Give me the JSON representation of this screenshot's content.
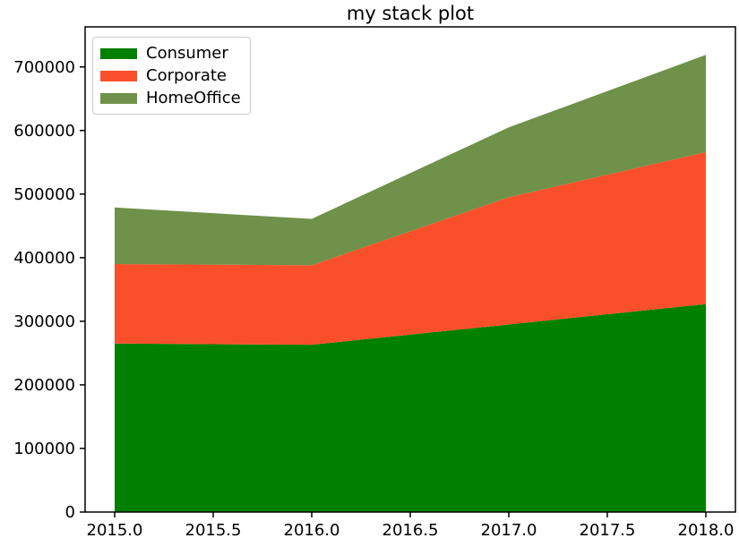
{
  "chart_data": {
    "type": "area",
    "stacked": true,
    "title": "my stack plot",
    "x": [
      2015,
      2016,
      2017,
      2018
    ],
    "series": [
      {
        "name": "Consumer",
        "color": "#008000",
        "values": [
          265000,
          263000,
          295000,
          327000
        ]
      },
      {
        "name": "Corporate",
        "color": "#fa4f2b",
        "values": [
          125000,
          125000,
          200000,
          239000
        ]
      },
      {
        "name": "HomeOffice",
        "color": "#6f9149",
        "values": [
          89000,
          73000,
          110000,
          153000
        ]
      }
    ],
    "totals": [
      479000,
      461000,
      605000,
      719000
    ],
    "xlabel": "",
    "ylabel": "",
    "xlim": [
      2014.85,
      2018.15
    ],
    "ylim": [
      0,
      763000
    ],
    "xticks": {
      "values": [
        2015.0,
        2015.5,
        2016.0,
        2016.5,
        2017.0,
        2017.5,
        2018.0
      ],
      "labels": [
        "2015.0",
        "2015.5",
        "2016.0",
        "2016.5",
        "2017.0",
        "2017.5",
        "2018.0"
      ]
    },
    "yticks": {
      "values": [
        0,
        100000,
        200000,
        300000,
        400000,
        500000,
        600000,
        700000
      ],
      "labels": [
        "0",
        "100000",
        "200000",
        "300000",
        "400000",
        "500000",
        "600000",
        "700000"
      ]
    },
    "legend_position": "upper left",
    "grid": false,
    "colors": {
      "spine": "#000000",
      "text": "#000000",
      "background": "#ffffff",
      "legend_border": "#cccccc"
    }
  }
}
